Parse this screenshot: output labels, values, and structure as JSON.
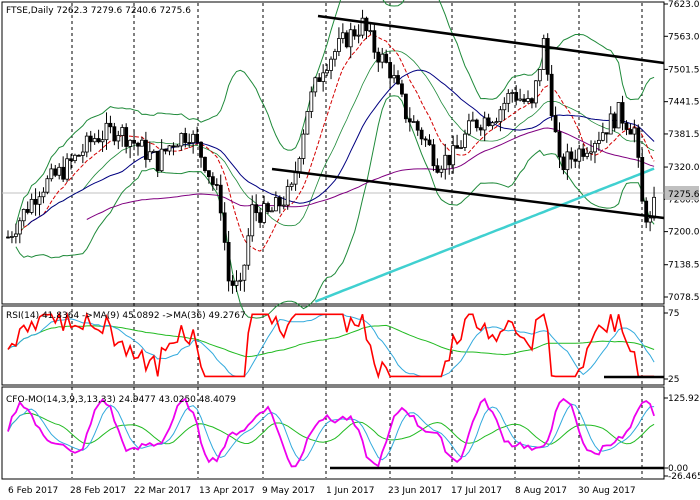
{
  "chart_data": [
    {
      "type": "candlestick",
      "title": "FTSE,Daily  7262.3 7279.6 7240.6 7275.6",
      "y_ticks": [
        "7623.0",
        "7563.0",
        "7501.5",
        "7441.5",
        "7381.5",
        "7320.0",
        "7260.0",
        "7200.0",
        "7138.5",
        "7078.5"
      ],
      "ylim": [
        7060,
        7640
      ],
      "current_price": "7275.6",
      "price_color": "#c0c0c0",
      "overlays": [
        "Bollinger Bands (green)",
        "MA (red)",
        "MA (dark blue)",
        "MA (purple)",
        "MA (turquoise)",
        "Channel lines (black)"
      ],
      "ohlc_pattern": "daily bars Feb–Sep 2017"
    },
    {
      "type": "line",
      "title": "RSI(14) 41.8364  ->MA(9) 45.0892  ->MA(36) 49.2767",
      "y_ticks": [
        "75",
        "25"
      ],
      "series": [
        {
          "name": "RSI(14)",
          "color": "#ff0000"
        },
        {
          "name": "MA(9)",
          "color": "#33aadd"
        },
        {
          "name": "MA(36)",
          "color": "#22bb22"
        }
      ]
    },
    {
      "type": "line",
      "title": "CFO-MO(14,3,9,3,13,33) 24.9477 43.0250 48.4079",
      "y_ticks": [
        "125.9208",
        "0.00",
        "-26.4656"
      ],
      "series": [
        {
          "name": "CFO-MO",
          "color": "#ee00ee"
        },
        {
          "name": "signal 1",
          "color": "#33aadd"
        },
        {
          "name": "signal 2",
          "color": "#22bb22"
        }
      ]
    }
  ],
  "x_axis": {
    "tick_labels": [
      "6 Feb 2017",
      "28 Feb 2017",
      "22 Mar 2017",
      "13 Apr 2017",
      "9 May 2017",
      "1 Jun 2017",
      "23 Jun 2017",
      "17 Jul 2017",
      "8 Aug 2017",
      "30 Aug 2017"
    ]
  }
}
